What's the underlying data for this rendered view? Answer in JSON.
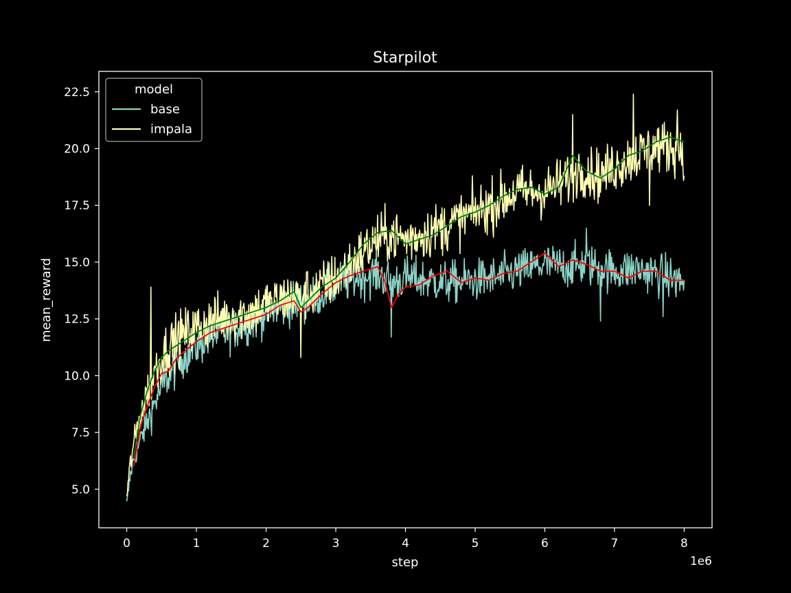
{
  "chart_data": {
    "type": "line",
    "title": "Starpilot",
    "xlabel": "step",
    "ylabel": "mean_reward",
    "x_offset_text": "1e6",
    "x_ticks": [
      "0",
      "1",
      "2",
      "3",
      "4",
      "5",
      "6",
      "7",
      "8"
    ],
    "y_ticks": [
      "5.0",
      "7.5",
      "10.0",
      "12.5",
      "15.0",
      "17.5",
      "20.0",
      "22.5"
    ],
    "xlim": [
      -0.4,
      8.4
    ],
    "ylim": [
      3.3,
      23.4
    ],
    "grid": false,
    "legend": {
      "title": "model",
      "placement": "upper-left",
      "entries": [
        {
          "name": "base",
          "color": "#8dd3c7"
        },
        {
          "name": "impala",
          "color": "#ffffb3"
        }
      ]
    },
    "series": [
      {
        "name": "base",
        "color": "#8dd3c7",
        "kind": "raw",
        "x": [
          0.0,
          0.05,
          0.1,
          0.2,
          0.3,
          0.4,
          0.5,
          0.6,
          0.8,
          1.0,
          1.2,
          1.5,
          1.8,
          2.0,
          2.3,
          2.6,
          3.0,
          3.3,
          3.6,
          3.8,
          4.0,
          4.3,
          4.6,
          5.0,
          5.3,
          5.6,
          6.0,
          6.3,
          6.6,
          7.0,
          7.3,
          7.6,
          8.0
        ],
        "y": [
          4.3,
          5.6,
          6.3,
          7.2,
          8.0,
          8.8,
          9.5,
          10.0,
          10.8,
          11.3,
          11.7,
          12.0,
          12.4,
          12.8,
          13.1,
          13.3,
          14.0,
          14.3,
          14.5,
          14.1,
          14.3,
          14.2,
          14.1,
          14.2,
          14.3,
          14.6,
          14.9,
          14.8,
          14.9,
          14.6,
          14.7,
          14.5,
          14.1
        ],
        "noise": 0.85,
        "spikes": [
          [
            3.8,
            11.7
          ],
          [
            6.6,
            16.5
          ],
          [
            6.8,
            12.4
          ],
          [
            7.7,
            12.6
          ]
        ]
      },
      {
        "name": "impala",
        "color": "#ffffb3",
        "kind": "raw",
        "x": [
          0.0,
          0.05,
          0.1,
          0.2,
          0.3,
          0.4,
          0.5,
          0.6,
          0.8,
          1.0,
          1.2,
          1.5,
          1.8,
          2.0,
          2.3,
          2.5,
          2.7,
          3.0,
          3.3,
          3.6,
          3.8,
          4.0,
          4.3,
          4.6,
          5.0,
          5.3,
          5.6,
          6.0,
          6.3,
          6.5,
          6.8,
          7.0,
          7.3,
          7.6,
          8.0
        ],
        "y": [
          4.6,
          6.1,
          7.0,
          8.3,
          9.3,
          10.2,
          10.8,
          11.3,
          11.8,
          12.1,
          12.4,
          12.6,
          12.8,
          13.1,
          13.4,
          13.6,
          13.7,
          14.3,
          15.2,
          16.0,
          16.2,
          16.0,
          16.3,
          16.6,
          17.2,
          17.6,
          18.1,
          18.1,
          18.6,
          19.1,
          18.8,
          19.2,
          19.7,
          20.1,
          20.0
        ],
        "noise": 1.05,
        "spikes": [
          [
            0.35,
            13.9
          ],
          [
            2.5,
            10.8
          ],
          [
            7.27,
            22.4
          ],
          [
            7.5,
            17.5
          ],
          [
            6.4,
            21.5
          ],
          [
            7.9,
            21.7
          ],
          [
            8.0,
            18.8
          ]
        ]
      },
      {
        "name": "",
        "color": "#ff0000",
        "kind": "smooth",
        "x": [
          0.1,
          0.2,
          0.3,
          0.4,
          0.5,
          0.6,
          0.7,
          0.8,
          1.0,
          1.2,
          1.4,
          1.6,
          1.8,
          2.0,
          2.2,
          2.4,
          2.5,
          2.6,
          2.8,
          3.0,
          3.2,
          3.4,
          3.6,
          3.7,
          3.8,
          3.9,
          4.0,
          4.2,
          4.4,
          4.6,
          4.8,
          5.0,
          5.2,
          5.4,
          5.6,
          5.8,
          6.0,
          6.2,
          6.4,
          6.6,
          6.8,
          7.0,
          7.2,
          7.4,
          7.6,
          7.8,
          8.0
        ],
        "y": [
          6.0,
          7.8,
          8.7,
          9.5,
          10.1,
          10.2,
          10.7,
          11.0,
          11.5,
          11.9,
          12.1,
          12.3,
          12.5,
          12.7,
          13.1,
          13.3,
          12.8,
          13.0,
          13.6,
          14.1,
          14.4,
          14.6,
          14.8,
          14.2,
          13.0,
          13.6,
          13.9,
          14.0,
          14.4,
          14.6,
          14.1,
          14.3,
          14.2,
          14.5,
          14.6,
          15.0,
          15.4,
          14.8,
          15.1,
          14.9,
          14.6,
          14.6,
          14.3,
          14.6,
          14.6,
          14.2,
          14.2
        ]
      },
      {
        "name": "",
        "color": "#008000",
        "kind": "smooth",
        "x": [
          0.1,
          0.2,
          0.3,
          0.4,
          0.5,
          0.6,
          0.8,
          1.0,
          1.2,
          1.4,
          1.6,
          1.8,
          2.0,
          2.2,
          2.4,
          2.5,
          2.6,
          2.8,
          3.0,
          3.2,
          3.4,
          3.6,
          3.8,
          4.0,
          4.2,
          4.4,
          4.6,
          4.8,
          5.0,
          5.2,
          5.4,
          5.6,
          5.8,
          6.0,
          6.2,
          6.4,
          6.6,
          6.8,
          7.0,
          7.2,
          7.4,
          7.6,
          7.8,
          8.0
        ],
        "y": [
          6.4,
          8.3,
          9.4,
          10.2,
          10.8,
          11.1,
          11.5,
          11.9,
          12.2,
          12.4,
          12.6,
          12.8,
          13.0,
          13.3,
          13.7,
          13.0,
          13.3,
          13.9,
          14.3,
          15.0,
          15.8,
          16.3,
          16.4,
          15.8,
          16.0,
          16.2,
          16.6,
          17.0,
          17.2,
          17.5,
          17.9,
          18.2,
          18.3,
          18.0,
          18.3,
          19.7,
          19.0,
          18.7,
          19.1,
          19.7,
          19.9,
          20.3,
          20.5,
          20.3
        ]
      }
    ]
  }
}
